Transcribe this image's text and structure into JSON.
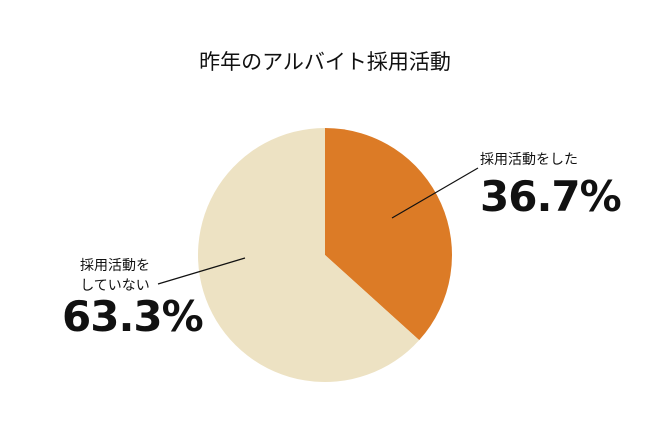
{
  "chart_data": {
    "type": "pie",
    "title": "昨年のアルバイト採用活動",
    "categories": [
      "採用活動をした",
      "採用活動を\nしていない"
    ],
    "values": [
      36.7,
      63.3
    ],
    "value_labels": [
      "36.7%",
      "63.3%"
    ],
    "colors": [
      "#dc7b26",
      "#ede2c3"
    ]
  }
}
